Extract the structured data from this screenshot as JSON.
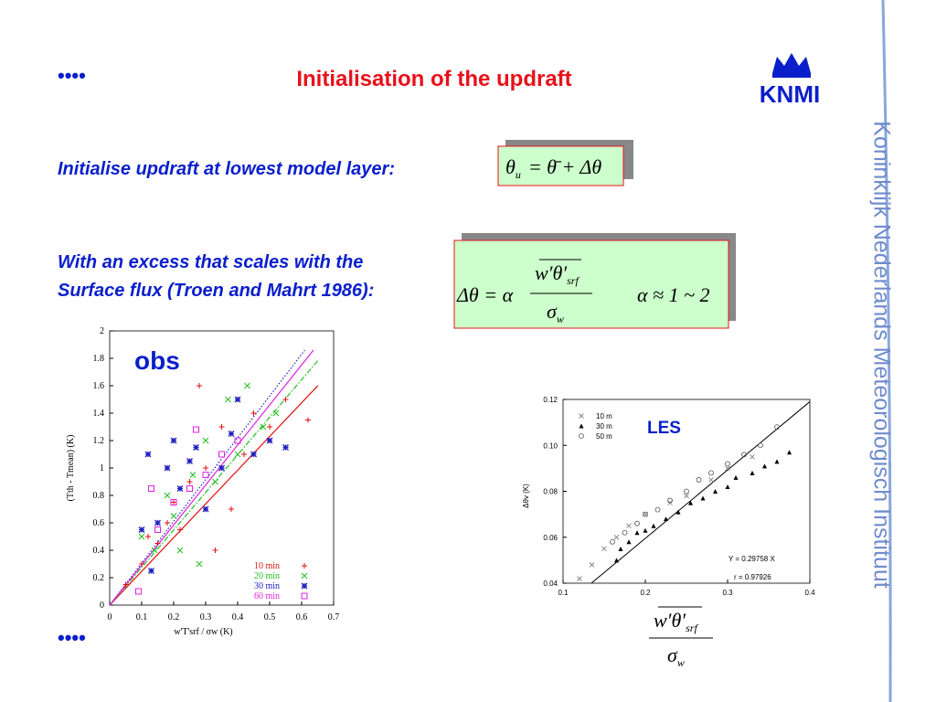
{
  "header": {
    "title": "Initialisation of the updraft",
    "logo": "KNMI",
    "side_text": "Koninklijk Nederlands Meteorologisch Instituut"
  },
  "bullets": [
    "••••",
    "••••"
  ],
  "text": {
    "line1": "Initialise updraft at lowest model layer:",
    "line2": "With an excess that scales with the",
    "line3": "Surface flux (Troen and Mahrt 1986):"
  },
  "formulas": {
    "updraft": {
      "theta": "θ",
      "sub": "u",
      "rhs": "= θ̄ + Δθ"
    },
    "excess": {
      "lhs": "Δθ = α",
      "numerator": "w′θ′",
      "numerator_sub": "srf",
      "denominator": "σ",
      "denominator_sub": "w",
      "alpha": "α ≈ 1 ~ 2"
    },
    "scaling": {
      "numerator": "w′θ′",
      "numerator_sub": "srf",
      "denominator": "σ",
      "denominator_sub": "w"
    }
  },
  "chart_data": [
    {
      "type": "scatter",
      "label": "obs",
      "x_label": "w'T'srf / σw (K)",
      "y_label": "(Tth - Tmean) (K)",
      "xlim": [
        0,
        0.7
      ],
      "ylim": [
        0,
        2
      ],
      "xticks": [
        0,
        0.1,
        0.2,
        0.3,
        0.4,
        0.5,
        0.6,
        0.7
      ],
      "yticks": [
        0,
        0.2,
        0.4,
        0.6,
        0.8,
        1,
        1.2,
        1.4,
        1.6,
        1.8,
        2
      ],
      "legend": "lower right",
      "series": [
        {
          "name": "10 min",
          "color": "#e01010",
          "marker": "plus",
          "fit_slope": 2.46,
          "fit_dash": "solid",
          "x": [
            0.05,
            0.1,
            0.12,
            0.15,
            0.18,
            0.2,
            0.22,
            0.25,
            0.28,
            0.3,
            0.35,
            0.38,
            0.42,
            0.45,
            0.5,
            0.55,
            0.62,
            0.33
          ],
          "y": [
            0.15,
            0.3,
            0.5,
            0.45,
            0.6,
            0.75,
            0.55,
            0.9,
            1.6,
            1.0,
            1.3,
            0.7,
            1.1,
            1.4,
            1.3,
            1.5,
            1.35,
            0.4
          ]
        },
        {
          "name": "20 min",
          "color": "#20c020",
          "marker": "cross",
          "fit_slope": 2.74,
          "fit_dash": "dashdot",
          "x": [
            0.1,
            0.14,
            0.18,
            0.2,
            0.22,
            0.26,
            0.3,
            0.33,
            0.37,
            0.4,
            0.43,
            0.48,
            0.52,
            0.28
          ],
          "y": [
            0.5,
            0.4,
            0.8,
            0.65,
            0.4,
            0.95,
            1.2,
            0.9,
            1.5,
            1.1,
            1.6,
            1.3,
            1.4,
            0.3
          ]
        },
        {
          "name": "30 min",
          "color": "#2020c0",
          "marker": "star",
          "fit_slope": 3.05,
          "fit_dash": "dotted",
          "x": [
            0.1,
            0.12,
            0.15,
            0.18,
            0.2,
            0.22,
            0.25,
            0.27,
            0.3,
            0.35,
            0.38,
            0.4,
            0.45,
            0.5,
            0.55,
            0.13
          ],
          "y": [
            0.55,
            1.1,
            0.6,
            1.0,
            1.2,
            0.85,
            1.05,
            1.15,
            0.7,
            1.0,
            1.25,
            1.5,
            1.1,
            1.2,
            1.15,
            0.25
          ]
        },
        {
          "name": "60 min",
          "color": "#e020e0",
          "marker": "square",
          "fit_slope": 2.92,
          "fit_dash": "solid",
          "x": [
            0.09,
            0.15,
            0.2,
            0.25,
            0.3,
            0.35,
            0.4,
            0.13,
            0.27
          ],
          "y": [
            0.1,
            0.55,
            0.75,
            0.85,
            0.95,
            1.1,
            1.2,
            0.85,
            1.28
          ]
        }
      ]
    },
    {
      "type": "scatter",
      "label": "LES",
      "y_label": "Δθv (K)",
      "xlim": [
        0.1,
        0.4
      ],
      "ylim": [
        0.04,
        0.12
      ],
      "xticks": [
        0.1,
        0.2,
        0.3,
        0.4
      ],
      "yticks": [
        0.04,
        0.06,
        0.08,
        {
          "value": 0.1,
          "label": "0.10"
        },
        0.12
      ],
      "legend": "upper left",
      "fit": {
        "label": "Y = 0.29758 X",
        "slope": 0.29758,
        "r_label": "r = 0.97926"
      },
      "series": [
        {
          "name": "10 m",
          "color": "#888888",
          "marker": "cross",
          "x": [
            0.12,
            0.135,
            0.15,
            0.165,
            0.18,
            0.2,
            0.23,
            0.25,
            0.28,
            0.3,
            0.33
          ],
          "y": [
            0.042,
            0.048,
            0.055,
            0.06,
            0.065,
            0.07,
            0.075,
            0.078,
            0.085,
            0.09,
            0.095
          ]
        },
        {
          "name": "30 m",
          "color": "#000000",
          "marker": "triangle",
          "x": [
            0.165,
            0.17,
            0.18,
            0.19,
            0.2,
            0.21,
            0.225,
            0.24,
            0.255,
            0.27,
            0.285,
            0.3,
            0.31,
            0.33,
            0.345,
            0.36,
            0.375
          ],
          "y": [
            0.05,
            0.055,
            0.058,
            0.062,
            0.063,
            0.065,
            0.068,
            0.071,
            0.075,
            0.077,
            0.08,
            0.082,
            0.086,
            0.088,
            0.091,
            0.093,
            0.097
          ]
        },
        {
          "name": "50 m",
          "color": "#555555",
          "marker": "circle",
          "x": [
            0.16,
            0.175,
            0.19,
            0.2,
            0.215,
            0.23,
            0.25,
            0.265,
            0.28,
            0.3,
            0.32,
            0.34,
            0.36
          ],
          "y": [
            0.058,
            0.062,
            0.066,
            0.07,
            0.072,
            0.076,
            0.08,
            0.085,
            0.088,
            0.092,
            0.096,
            0.1,
            0.108
          ]
        }
      ]
    }
  ]
}
